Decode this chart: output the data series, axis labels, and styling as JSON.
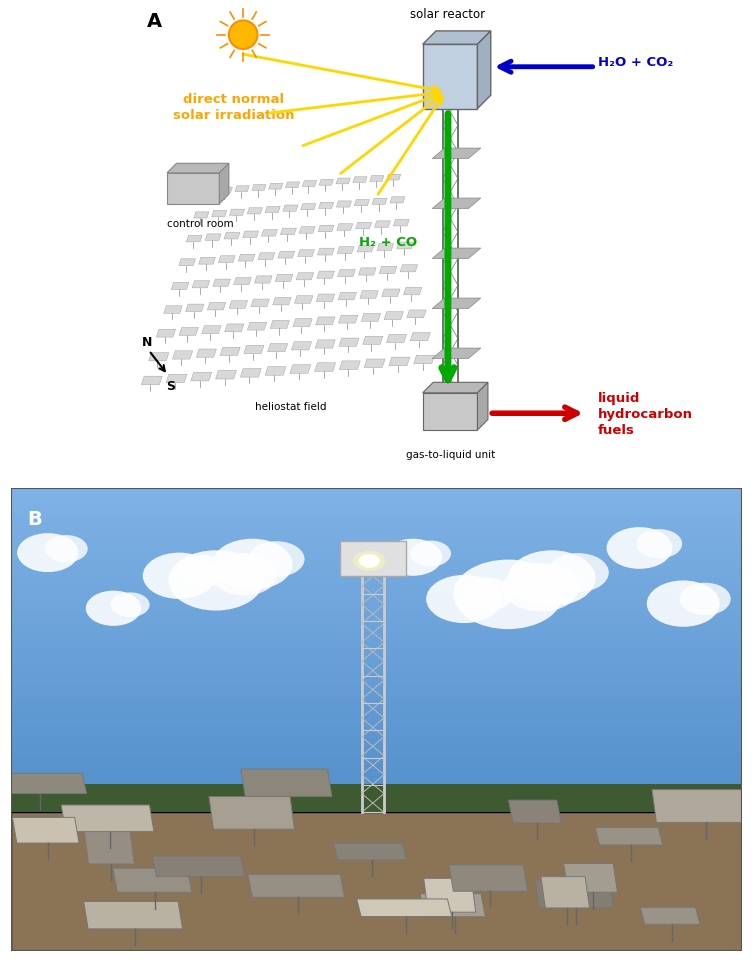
{
  "panel_a_label": "A",
  "panel_b_label": "B",
  "title_solar_reactor": "solar reactor",
  "label_h2o_co2": "H₂O + CO₂",
  "label_direct_normal": "direct normal\nsolar irradiation",
  "label_control_room": "control room",
  "label_heliostat_field": "heliostat field",
  "label_h2_co": "H₂ + CO",
  "label_gas_to_liquid": "gas-to-liquid unit",
  "label_liquid_hydrocarbon": "liquid\nhydrocarbon\nfuels",
  "color_orange": "#FFA500",
  "color_blue": "#0000CC",
  "color_red": "#CC0000",
  "color_green": "#00AA00",
  "color_yellow_arrow": "#FFD700",
  "color_dark_gray": "#555555",
  "color_light_gray": "#CCCCCC",
  "color_bg_white": "#FFFFFF",
  "fig_width": 7.53,
  "fig_height": 9.62,
  "dpi": 100
}
